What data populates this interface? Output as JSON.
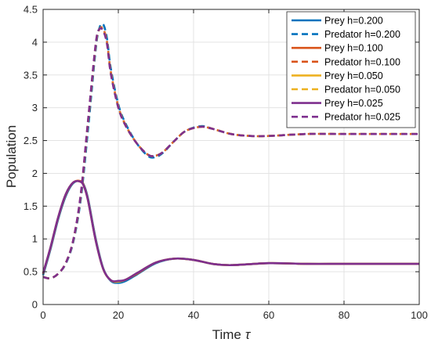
{
  "chart_data": {
    "type": "line",
    "title": "",
    "xlabel": "Time",
    "xlabel_symbol": "τ",
    "ylabel": "Population",
    "xlim": [
      0,
      100
    ],
    "ylim": [
      0,
      4.5
    ],
    "xticks": [
      "0",
      "20",
      "40",
      "60",
      "80",
      "100"
    ],
    "yticks": [
      "0",
      "0.5",
      "1",
      "1.5",
      "2",
      "2.5",
      "3",
      "3.5",
      "4",
      "4.5"
    ],
    "grid": true,
    "legend_position": "top-right",
    "series": [
      {
        "name": "Prey h=0.200",
        "color": "#0072BD",
        "dash": "solid",
        "x": [
          0,
          2,
          4,
          6,
          8,
          10,
          11,
          12,
          14,
          16,
          18,
          20,
          22,
          25,
          30,
          35,
          40,
          45,
          50,
          60,
          70,
          80,
          90,
          100
        ],
        "y": [
          0.45,
          0.85,
          1.3,
          1.65,
          1.85,
          1.88,
          1.8,
          1.6,
          1.0,
          0.55,
          0.36,
          0.33,
          0.36,
          0.46,
          0.63,
          0.7,
          0.68,
          0.62,
          0.6,
          0.63,
          0.62,
          0.62,
          0.62,
          0.62
        ]
      },
      {
        "name": "Predator h=0.200",
        "color": "#0072BD",
        "dash": "dashed",
        "x": [
          0,
          2,
          4,
          6,
          8,
          10,
          12,
          14,
          15,
          16,
          17,
          18,
          20,
          22,
          25,
          28,
          30,
          32,
          35,
          38,
          42,
          45,
          50,
          55,
          60,
          70,
          80,
          90,
          100
        ],
        "y": [
          0.42,
          0.4,
          0.47,
          0.62,
          0.95,
          1.6,
          2.7,
          3.9,
          4.22,
          4.27,
          4.05,
          3.6,
          3.05,
          2.75,
          2.45,
          2.26,
          2.25,
          2.32,
          2.5,
          2.65,
          2.72,
          2.68,
          2.6,
          2.57,
          2.57,
          2.6,
          2.6,
          2.6,
          2.6
        ]
      },
      {
        "name": "Prey h=0.100",
        "color": "#D95319",
        "dash": "solid",
        "x": [
          0,
          2,
          4,
          6,
          8,
          10,
          11,
          12,
          14,
          16,
          18,
          20,
          22,
          25,
          30,
          35,
          40,
          45,
          50,
          60,
          70,
          80,
          90,
          100
        ],
        "y": [
          0.47,
          0.87,
          1.32,
          1.67,
          1.86,
          1.88,
          1.79,
          1.58,
          0.98,
          0.54,
          0.37,
          0.35,
          0.38,
          0.47,
          0.64,
          0.7,
          0.68,
          0.62,
          0.6,
          0.63,
          0.62,
          0.62,
          0.62,
          0.62
        ]
      },
      {
        "name": "Predator h=0.100",
        "color": "#D95319",
        "dash": "dashed",
        "x": [
          0,
          2,
          4,
          6,
          8,
          10,
          12,
          14,
          15,
          16,
          17,
          18,
          20,
          22,
          25,
          28,
          30,
          32,
          35,
          38,
          42,
          45,
          50,
          55,
          60,
          70,
          80,
          90,
          100
        ],
        "y": [
          0.42,
          0.4,
          0.47,
          0.63,
          0.97,
          1.65,
          2.8,
          3.95,
          4.2,
          4.2,
          4.0,
          3.55,
          3.02,
          2.73,
          2.45,
          2.28,
          2.27,
          2.33,
          2.5,
          2.65,
          2.71,
          2.68,
          2.6,
          2.57,
          2.57,
          2.6,
          2.6,
          2.6,
          2.6
        ]
      },
      {
        "name": "Prey h=0.050",
        "color": "#EDB120",
        "dash": "solid",
        "x": [
          0,
          2,
          4,
          6,
          8,
          10,
          11,
          12,
          14,
          16,
          18,
          20,
          22,
          25,
          30,
          35,
          40,
          45,
          50,
          60,
          70,
          80,
          90,
          100
        ],
        "y": [
          0.48,
          0.88,
          1.33,
          1.68,
          1.86,
          1.87,
          1.78,
          1.57,
          0.97,
          0.54,
          0.37,
          0.35,
          0.38,
          0.48,
          0.64,
          0.7,
          0.68,
          0.62,
          0.6,
          0.63,
          0.62,
          0.62,
          0.62,
          0.62
        ]
      },
      {
        "name": "Predator h=0.050",
        "color": "#EDB120",
        "dash": "dashed",
        "x": [
          0,
          2,
          4,
          6,
          8,
          10,
          12,
          14,
          15,
          16,
          17,
          18,
          20,
          22,
          25,
          28,
          30,
          32,
          35,
          38,
          42,
          45,
          50,
          55,
          60,
          70,
          80,
          90,
          100
        ],
        "y": [
          0.42,
          0.4,
          0.47,
          0.63,
          0.98,
          1.67,
          2.83,
          3.97,
          4.2,
          4.18,
          3.98,
          3.53,
          3.01,
          2.72,
          2.45,
          2.28,
          2.27,
          2.33,
          2.5,
          2.65,
          2.71,
          2.68,
          2.6,
          2.57,
          2.57,
          2.6,
          2.6,
          2.6,
          2.6
        ]
      },
      {
        "name": "Prey h=0.025",
        "color": "#7E2F8E",
        "dash": "solid",
        "x": [
          0,
          2,
          4,
          6,
          8,
          10,
          11,
          12,
          14,
          16,
          18,
          20,
          22,
          25,
          30,
          35,
          40,
          45,
          50,
          60,
          70,
          80,
          90,
          100
        ],
        "y": [
          0.48,
          0.88,
          1.33,
          1.68,
          1.86,
          1.87,
          1.78,
          1.57,
          0.97,
          0.54,
          0.37,
          0.36,
          0.38,
          0.48,
          0.64,
          0.7,
          0.68,
          0.62,
          0.6,
          0.63,
          0.62,
          0.62,
          0.62,
          0.62
        ]
      },
      {
        "name": "Predator h=0.025",
        "color": "#7E2F8E",
        "dash": "dashed",
        "x": [
          0,
          2,
          4,
          6,
          8,
          10,
          12,
          14,
          15,
          16,
          17,
          18,
          20,
          22,
          25,
          28,
          30,
          32,
          35,
          38,
          42,
          45,
          50,
          55,
          60,
          70,
          80,
          90,
          100
        ],
        "y": [
          0.42,
          0.4,
          0.47,
          0.63,
          0.98,
          1.68,
          2.84,
          3.98,
          4.2,
          4.17,
          3.97,
          3.52,
          3.0,
          2.72,
          2.45,
          2.28,
          2.27,
          2.33,
          2.5,
          2.65,
          2.71,
          2.68,
          2.6,
          2.57,
          2.57,
          2.6,
          2.6,
          2.6,
          2.6
        ]
      }
    ]
  }
}
